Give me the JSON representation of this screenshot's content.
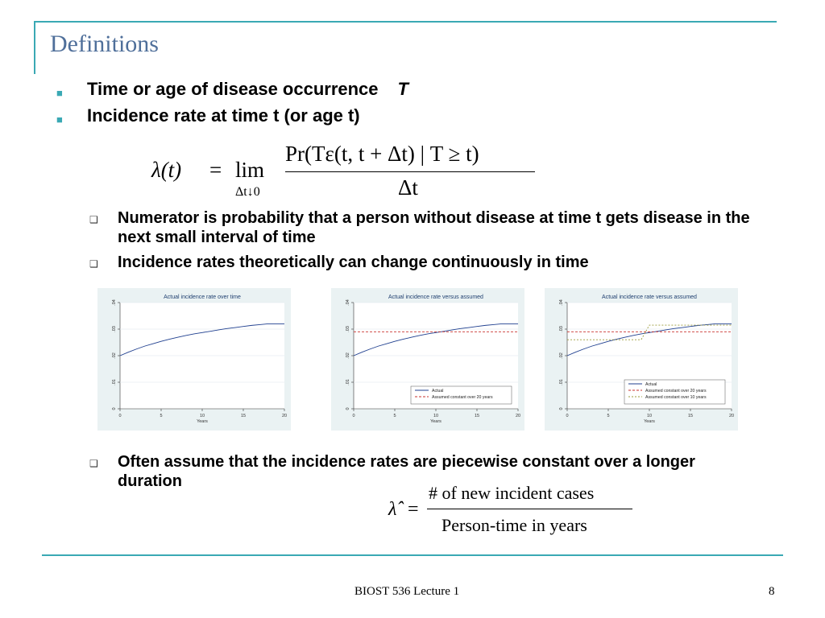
{
  "slide": {
    "title": "Definitions",
    "bullets": [
      {
        "text": "Time or age of disease occurrence",
        "var": "T"
      },
      {
        "text": "Incidence rate at time t (or age t)"
      }
    ],
    "formula1": {
      "lhs": "λ(t)",
      "eq": "=",
      "lim": "lim",
      "lim_sub": "Δt↓0",
      "numerator": "Pr(Tε(t, t + Δt) | T ≥ t)",
      "denominator": "Δt"
    },
    "sub_bullets": [
      "Numerator is probability that a person without disease at time t gets disease in the next small interval of time",
      "Incidence rates theoretically can change continuously in time"
    ],
    "sub_bullet_last": "Often assume that the incidence rates are piecewise constant over a longer duration",
    "formula2": {
      "lhs": "λ̂",
      "eq": "=",
      "numerator": "# of new incident cases",
      "denominator": "Person-time in years"
    },
    "footer": {
      "center": "BIOST 536 Lecture 1",
      "page": "8"
    }
  },
  "colors": {
    "accent": "#3aa9b4",
    "title": "#4f6f9a",
    "actual": "#1f3f8f",
    "assumed20": "#c8302c",
    "assumed10": "#9a9a3a"
  },
  "chart_data": [
    {
      "type": "line",
      "title": "Actual incidence rate over time",
      "xlabel": "Years",
      "ylabel": "",
      "xlim": [
        0,
        20
      ],
      "ylim": [
        0,
        0.04
      ],
      "xticks": [
        "0",
        "5",
        "10",
        "15",
        "20"
      ],
      "yticks": [
        "0",
        ".01",
        ".02",
        ".03",
        ".04"
      ],
      "series": [
        {
          "x": [
            0,
            1,
            2,
            3,
            4,
            5,
            6,
            7,
            8,
            9,
            10,
            11,
            12,
            13,
            14,
            15,
            16,
            17,
            18,
            19,
            20
          ],
          "y": [
            0.02,
            0.0213,
            0.0225,
            0.0236,
            0.0245,
            0.0254,
            0.0262,
            0.0269,
            0.0276,
            0.0282,
            0.0287,
            0.0292,
            0.0297,
            0.0302,
            0.0306,
            0.031,
            0.0314,
            0.0317,
            0.032,
            0.032,
            0.032
          ]
        }
      ],
      "legend": []
    },
    {
      "type": "line",
      "title": "Actual incidence rate versus assumed",
      "xlabel": "Years",
      "ylabel": "",
      "xlim": [
        0,
        20
      ],
      "ylim": [
        0,
        0.04
      ],
      "xticks": [
        "0",
        "5",
        "10",
        "15",
        "20"
      ],
      "yticks": [
        "0",
        ".01",
        ".02",
        ".03",
        ".04"
      ],
      "series": [
        {
          "name": "Actual",
          "x": [
            0,
            1,
            2,
            3,
            4,
            5,
            6,
            7,
            8,
            9,
            10,
            11,
            12,
            13,
            14,
            15,
            16,
            17,
            18,
            19,
            20
          ],
          "y": [
            0.02,
            0.0213,
            0.0225,
            0.0236,
            0.0245,
            0.0254,
            0.0262,
            0.0269,
            0.0276,
            0.0282,
            0.0287,
            0.0292,
            0.0297,
            0.0302,
            0.0306,
            0.031,
            0.0314,
            0.0317,
            0.032,
            0.032,
            0.032
          ]
        },
        {
          "name": "Assumed constant over 20 years",
          "x": [
            0,
            20
          ],
          "y": [
            0.029,
            0.029
          ]
        }
      ],
      "legend": "bottom-right"
    },
    {
      "type": "line",
      "title": "Actual incidence rate versus assumed",
      "xlabel": "Years",
      "ylabel": "",
      "xlim": [
        0,
        20
      ],
      "ylim": [
        0,
        0.04
      ],
      "xticks": [
        "0",
        "5",
        "10",
        "15",
        "20"
      ],
      "yticks": [
        "0",
        ".01",
        ".02",
        ".03",
        ".04"
      ],
      "series": [
        {
          "name": "Actual",
          "x": [
            0,
            1,
            2,
            3,
            4,
            5,
            6,
            7,
            8,
            9,
            10,
            11,
            12,
            13,
            14,
            15,
            16,
            17,
            18,
            19,
            20
          ],
          "y": [
            0.02,
            0.0213,
            0.0225,
            0.0236,
            0.0245,
            0.0254,
            0.0262,
            0.0269,
            0.0276,
            0.0282,
            0.0287,
            0.0292,
            0.0297,
            0.0302,
            0.0306,
            0.031,
            0.0314,
            0.0317,
            0.032,
            0.032,
            0.032
          ]
        },
        {
          "name": "Assumed constant over 20 years",
          "x": [
            0,
            20
          ],
          "y": [
            0.029,
            0.029
          ]
        },
        {
          "name": "Assumed constant over 10 years",
          "x": [
            0,
            9,
            10,
            20
          ],
          "y": [
            0.026,
            0.026,
            0.0315,
            0.0315
          ]
        }
      ],
      "legend": "bottom-right"
    }
  ]
}
